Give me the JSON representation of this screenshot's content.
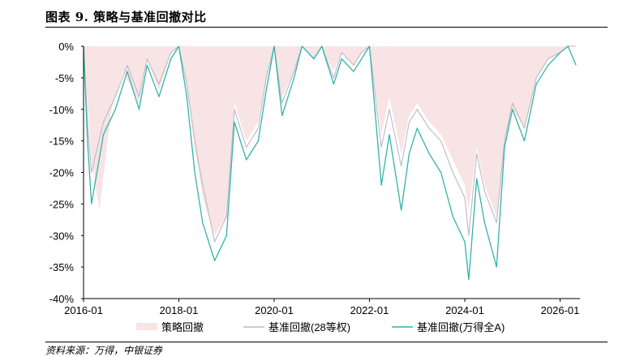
{
  "figure": {
    "title": "图表 9. 策略与基准回撤对比",
    "source": "资料来源：万得，中银证券"
  },
  "chart_data": {
    "type": "area",
    "x_range": [
      "2016-01",
      "2026-06"
    ],
    "ylim": [
      -40,
      0
    ],
    "x_ticks": [
      "2016-01",
      "2018-01",
      "2020-01",
      "2022-01",
      "2024-01",
      "2026-01"
    ],
    "y_ticks": [
      "0%",
      "-5%",
      "-10%",
      "-15%",
      "-20%",
      "-25%",
      "-30%",
      "-35%",
      "-40%"
    ],
    "grid": false,
    "legend_position": "bottom",
    "colors": {
      "strategy": "#f8e4e4",
      "bench28": "#b9bac6",
      "wind": "#34b3ab"
    },
    "series": [
      {
        "name": "策略回撤",
        "style": "area",
        "x": [
          "2016-01",
          "2016-03",
          "2016-05",
          "2016-08",
          "2016-11",
          "2017-03",
          "2017-05",
          "2017-08",
          "2017-11",
          "2018-01",
          "2018-03",
          "2018-05",
          "2018-07",
          "2018-10",
          "2019-01",
          "2019-03",
          "2019-06",
          "2019-09",
          "2019-11",
          "2020-01",
          "2020-03",
          "2020-06",
          "2020-08",
          "2020-11",
          "2021-01",
          "2021-04",
          "2021-06",
          "2021-09",
          "2021-11",
          "2022-01",
          "2022-04",
          "2022-06",
          "2022-09",
          "2022-11",
          "2023-01",
          "2023-04",
          "2023-07",
          "2023-10",
          "2024-01",
          "2024-02",
          "2024-04",
          "2024-06",
          "2024-09",
          "2024-11",
          "2025-01",
          "2025-04",
          "2025-07",
          "2025-10",
          "2026-01",
          "2026-03",
          "2026-05"
        ],
        "values": [
          0,
          -18,
          -26,
          -10,
          -4,
          -9,
          -2,
          -7,
          -1,
          0,
          -6,
          -16,
          -24,
          -30,
          -27,
          -9,
          -15,
          -12,
          -5,
          0,
          -8,
          -4,
          0,
          -2,
          0,
          -4,
          -1,
          -3,
          -1,
          0,
          -14,
          -8,
          -17,
          -11,
          -9,
          -12,
          -14,
          -18,
          -22,
          -26,
          -16,
          -22,
          -27,
          -15,
          -10,
          -13,
          -5,
          -2,
          -1,
          0,
          0
        ]
      },
      {
        "name": "基准回撤(28等权)",
        "style": "line",
        "x": [
          "2016-01",
          "2016-02",
          "2016-03",
          "2016-06",
          "2016-09",
          "2016-12",
          "2017-03",
          "2017-05",
          "2017-08",
          "2017-11",
          "2018-01",
          "2018-03",
          "2018-05",
          "2018-07",
          "2018-10",
          "2019-01",
          "2019-03",
          "2019-06",
          "2019-09",
          "2019-11",
          "2020-01",
          "2020-03",
          "2020-06",
          "2020-08",
          "2020-11",
          "2021-01",
          "2021-04",
          "2021-06",
          "2021-09",
          "2021-11",
          "2022-01",
          "2022-04",
          "2022-06",
          "2022-09",
          "2022-11",
          "2023-01",
          "2023-04",
          "2023-07",
          "2023-10",
          "2024-01",
          "2024-02",
          "2024-04",
          "2024-06",
          "2024-09",
          "2024-11",
          "2025-01",
          "2025-04",
          "2025-07",
          "2025-10",
          "2026-01",
          "2026-03",
          "2026-05"
        ],
        "values": [
          0,
          -12,
          -20,
          -12,
          -8,
          -3,
          -8,
          -2,
          -6,
          -1,
          0,
          -6,
          -15,
          -22,
          -31,
          -27,
          -10,
          -16,
          -13,
          -5,
          0,
          -9,
          -4,
          0,
          -2,
          0,
          -5,
          -1,
          -3,
          -1,
          0,
          -16,
          -10,
          -19,
          -12,
          -10,
          -13,
          -15,
          -20,
          -24,
          -30,
          -17,
          -23,
          -28,
          -15,
          -9,
          -13,
          -5,
          -2,
          -1,
          0,
          0
        ]
      },
      {
        "name": "基准回撤(万得全A)",
        "style": "line",
        "x": [
          "2016-01",
          "2016-02",
          "2016-03",
          "2016-06",
          "2016-09",
          "2016-12",
          "2017-03",
          "2017-05",
          "2017-08",
          "2017-11",
          "2018-01",
          "2018-03",
          "2018-05",
          "2018-07",
          "2018-10",
          "2019-01",
          "2019-03",
          "2019-06",
          "2019-09",
          "2019-11",
          "2020-01",
          "2020-03",
          "2020-06",
          "2020-08",
          "2020-11",
          "2021-01",
          "2021-04",
          "2021-06",
          "2021-09",
          "2021-11",
          "2022-01",
          "2022-04",
          "2022-06",
          "2022-09",
          "2022-11",
          "2023-01",
          "2023-04",
          "2023-07",
          "2023-10",
          "2024-01",
          "2024-02",
          "2024-04",
          "2024-06",
          "2024-09",
          "2024-11",
          "2025-01",
          "2025-04",
          "2025-07",
          "2025-10",
          "2026-01",
          "2026-03",
          "2026-05"
        ],
        "values": [
          0,
          -15,
          -25,
          -14,
          -10,
          -4,
          -10,
          -3,
          -8,
          -2,
          0,
          -8,
          -20,
          -28,
          -34,
          -30,
          -12,
          -18,
          -15,
          -7,
          0,
          -11,
          -5,
          0,
          -2,
          0,
          -6,
          -2,
          -4,
          -2,
          0,
          -22,
          -14,
          -26,
          -17,
          -13,
          -17,
          -20,
          -27,
          -31,
          -37,
          -21,
          -28,
          -35,
          -16,
          -10,
          -15,
          -6,
          -3,
          -1,
          0,
          -3
        ]
      }
    ]
  }
}
